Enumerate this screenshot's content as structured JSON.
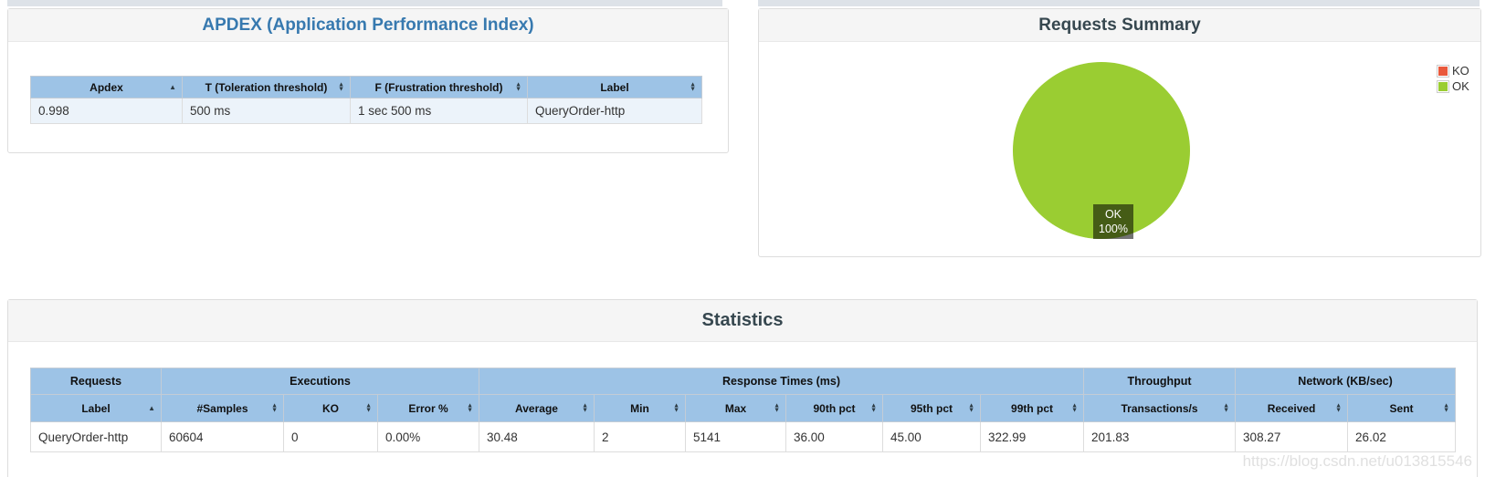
{
  "apdex": {
    "title": "APDEX (Application Performance Index)",
    "columns": [
      {
        "label": "Apdex",
        "sort": "asc"
      },
      {
        "label": "T (Toleration threshold)",
        "sort": "both"
      },
      {
        "label": "F (Frustration threshold)",
        "sort": "both"
      },
      {
        "label": "Label",
        "sort": "both"
      }
    ],
    "rows": [
      [
        "0.998",
        "500 ms",
        "1 sec 500 ms",
        "QueryOrder-http"
      ]
    ]
  },
  "summary": {
    "title": "Requests Summary",
    "legend": [
      {
        "label": "KO",
        "color": "#e9593c"
      },
      {
        "label": "OK",
        "color": "#9acd32"
      }
    ],
    "pie_label": {
      "line1": "OK",
      "line2": "100%"
    }
  },
  "statistics": {
    "title": "Statistics",
    "groups": [
      {
        "label": "Requests",
        "colspan": 1
      },
      {
        "label": "Executions",
        "colspan": 3
      },
      {
        "label": "Response Times (ms)",
        "colspan": 6
      },
      {
        "label": "Throughput",
        "colspan": 1
      },
      {
        "label": "Network (KB/sec)",
        "colspan": 2
      }
    ],
    "columns": [
      {
        "label": "Label",
        "sort": "asc"
      },
      {
        "label": "#Samples",
        "sort": "both"
      },
      {
        "label": "KO",
        "sort": "both"
      },
      {
        "label": "Error %",
        "sort": "both"
      },
      {
        "label": "Average",
        "sort": "both"
      },
      {
        "label": "Min",
        "sort": "both"
      },
      {
        "label": "Max",
        "sort": "both"
      },
      {
        "label": "90th pct",
        "sort": "both"
      },
      {
        "label": "95th pct",
        "sort": "both"
      },
      {
        "label": "99th pct",
        "sort": "both"
      },
      {
        "label": "Transactions/s",
        "sort": "both"
      },
      {
        "label": "Received",
        "sort": "both"
      },
      {
        "label": "Sent",
        "sort": "both"
      }
    ],
    "rows": [
      [
        "QueryOrder-http",
        "60604",
        "0",
        "0.00%",
        "30.48",
        "2",
        "5141",
        "36.00",
        "45.00",
        "322.99",
        "201.83",
        "308.27",
        "26.02"
      ]
    ]
  },
  "chart_data": {
    "type": "pie",
    "title": "Requests Summary",
    "slices": [
      {
        "label": "KO",
        "value": 0,
        "color": "#e9593c"
      },
      {
        "label": "OK",
        "value": 100,
        "color": "#9acd32"
      }
    ],
    "legend_position": "top-right",
    "data_label": "OK 100%"
  },
  "colors": {
    "ok": "#9acd32",
    "ko": "#e9593c",
    "table_header_bg": "#9dc3e6",
    "apdex_row_bg": "#ecf3fa",
    "title_blue": "#3779af",
    "title_dark": "#36474f"
  },
  "watermark": "https://blog.csdn.net/u013815546"
}
